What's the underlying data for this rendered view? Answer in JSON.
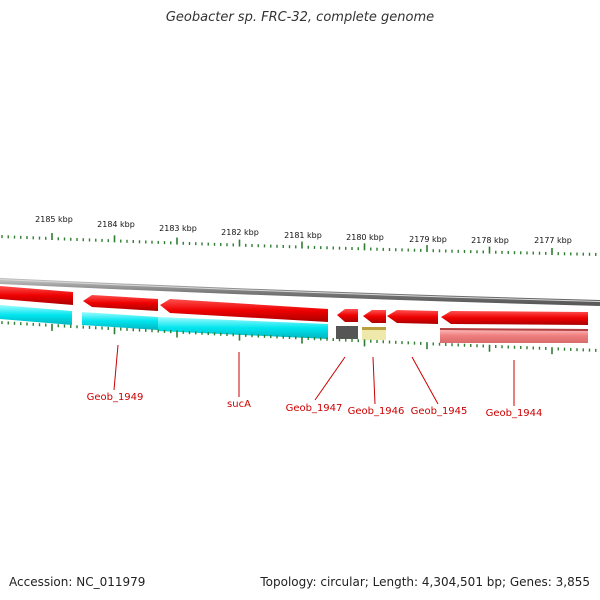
{
  "title": "Geobacter sp. FRC-32, complete genome",
  "accession": "Accession: NC_011979",
  "stats": "Topology: circular; Length: 4,304,501 bp; Genes: 3,855",
  "scale": {
    "unit": "kbp",
    "labels": [
      "2185 kbp",
      "2184 kbp",
      "2183 kbp",
      "2182 kbp",
      "2181 kbp",
      "2180 kbp",
      "2179 kbp",
      "2178 kbp",
      "2177 kbp"
    ]
  },
  "colors": {
    "backbone": "#8a8a8a",
    "cds": "#ee0000",
    "cds_light": "#ff9a9a",
    "cds_band": "#00e5ee",
    "other_dark": "#555555",
    "other_yellow": "#eee8aa",
    "tick": "#2e7d32",
    "label": "#cc0000"
  },
  "genes": [
    {
      "name": "Geob_1949"
    },
    {
      "name": "sucA"
    },
    {
      "name": "Geob_1947"
    },
    {
      "name": "Geob_1946"
    },
    {
      "name": "Geob_1945"
    },
    {
      "name": "Geob_1944"
    }
  ]
}
